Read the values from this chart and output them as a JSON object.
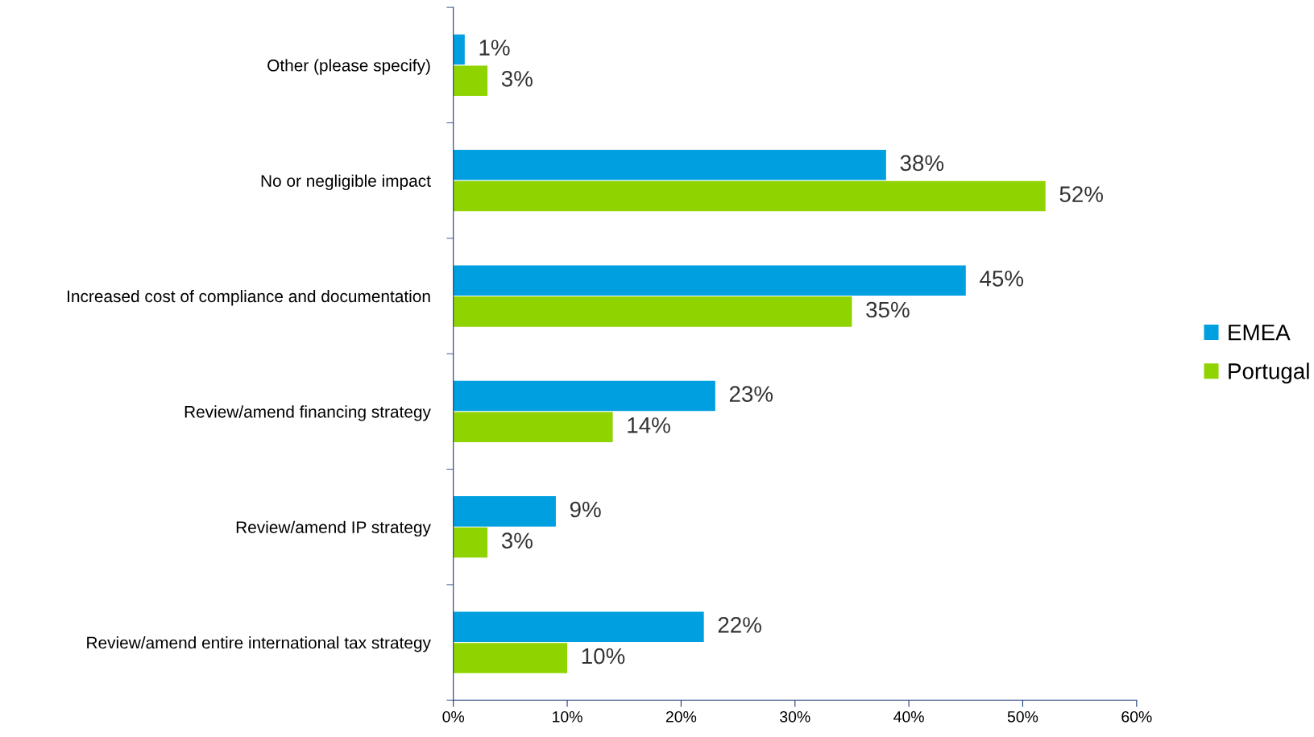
{
  "chart_data": {
    "type": "bar",
    "orientation": "horizontal",
    "categories": [
      "Other (please specify)",
      "No or negligible impact",
      "Increased cost of compliance and documentation",
      "Review/amend financing strategy",
      "Review/amend IP strategy",
      "Review/amend entire international tax strategy"
    ],
    "series": [
      {
        "name": "EMEA",
        "color": "#009fe0",
        "values": [
          1,
          38,
          45,
          23,
          9,
          22
        ],
        "value_labels": [
          "1%",
          "38%",
          "45%",
          "23%",
          "9%",
          "22%"
        ]
      },
      {
        "name": "Portugal",
        "color": "#8fd400",
        "values": [
          3,
          52,
          35,
          14,
          3,
          10
        ],
        "value_labels": [
          "3%",
          "52%",
          "35%",
          "14%",
          "3%",
          "10%"
        ]
      }
    ],
    "xlim": [
      0,
      60
    ],
    "xticks": [
      {
        "value": 0,
        "label": "0%"
      },
      {
        "value": 10,
        "label": "10%"
      },
      {
        "value": 20,
        "label": "20%"
      },
      {
        "value": 30,
        "label": "30%"
      },
      {
        "value": 40,
        "label": "40%"
      },
      {
        "value": 50,
        "label": "50%"
      },
      {
        "value": 60,
        "label": "60%"
      }
    ],
    "grid": false,
    "legend": "right"
  }
}
